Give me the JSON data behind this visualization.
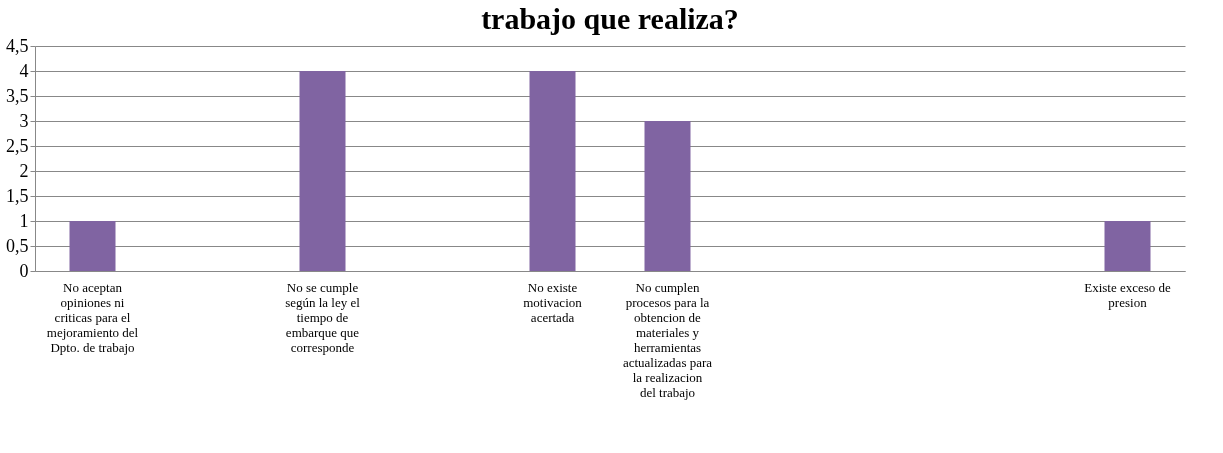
{
  "chart_data": {
    "type": "bar",
    "title": "trabajo que realiza?",
    "categories": [
      "No aceptan opiniones ni criticas para el mejoramiento del Dpto. de trabajo",
      null,
      "No se cumple según la ley el tiempo de embarque que corresponde",
      null,
      "No existe motivacion acertada",
      "No cumplen procesos para la obtencion de materiales y herramientas actualizadas para la realizacion del trabajo",
      null,
      null,
      null,
      "Existe exceso de presion"
    ],
    "values": [
      1,
      null,
      4,
      null,
      4,
      3,
      null,
      null,
      null,
      1
    ],
    "color": "#8064a2",
    "ylim": [
      0,
      4.5
    ],
    "yticks": [
      0,
      {
        "value": 0.5,
        "label": "0,5"
      },
      1,
      {
        "value": 1.5,
        "label": "1,5"
      },
      2,
      {
        "value": 2.5,
        "label": "2,5"
      },
      3,
      {
        "value": 3.5,
        "label": "3,5"
      },
      4,
      {
        "value": 4.5,
        "label": "4,5"
      }
    ],
    "grid": "y"
  }
}
